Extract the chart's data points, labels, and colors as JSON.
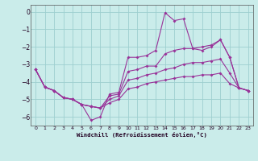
{
  "xlabel": "Windchill (Refroidissement éolien,°C)",
  "background_color": "#caecea",
  "grid_color": "#9dcfcf",
  "line_color": "#993399",
  "xlim": [
    -0.5,
    23.5
  ],
  "ylim": [
    -6.5,
    0.4
  ],
  "yticks": [
    0,
    -1,
    -2,
    -3,
    -4,
    -5,
    -6
  ],
  "xticks": [
    0,
    1,
    2,
    3,
    4,
    5,
    6,
    7,
    8,
    9,
    10,
    11,
    12,
    13,
    14,
    15,
    16,
    17,
    18,
    19,
    20,
    21,
    22,
    23
  ],
  "line1_x": [
    0,
    1,
    2,
    3,
    4,
    5,
    6,
    7,
    8,
    9,
    10,
    11,
    12,
    13,
    14,
    15,
    16,
    17,
    18,
    19,
    20,
    21,
    22,
    23
  ],
  "line1_y": [
    -3.3,
    -4.3,
    -4.5,
    -4.9,
    -5.0,
    -5.3,
    -6.2,
    -6.0,
    -4.7,
    -4.6,
    -2.6,
    -2.6,
    -2.5,
    -2.2,
    -0.05,
    -0.5,
    -0.4,
    -2.1,
    -2.2,
    -2.0,
    -1.6,
    -2.6,
    -4.35,
    -4.5
  ],
  "line2_x": [
    0,
    1,
    2,
    3,
    4,
    5,
    6,
    7,
    8,
    9,
    10,
    11,
    12,
    13,
    14,
    15,
    16,
    17,
    18,
    19,
    20,
    21,
    22,
    23
  ],
  "line2_y": [
    -3.3,
    -4.3,
    -4.5,
    -4.9,
    -5.0,
    -5.3,
    -5.4,
    -5.5,
    -4.8,
    -4.7,
    -3.4,
    -3.3,
    -3.1,
    -3.1,
    -2.4,
    -2.2,
    -2.1,
    -2.1,
    -2.0,
    -1.9,
    -1.6,
    -2.6,
    -4.35,
    -4.5
  ],
  "line3_x": [
    0,
    1,
    2,
    3,
    4,
    5,
    6,
    7,
    8,
    9,
    10,
    11,
    12,
    13,
    14,
    15,
    16,
    17,
    18,
    19,
    20,
    21,
    22,
    23
  ],
  "line3_y": [
    -3.3,
    -4.3,
    -4.5,
    -4.9,
    -5.0,
    -5.3,
    -5.4,
    -5.5,
    -5.0,
    -4.8,
    -3.9,
    -3.8,
    -3.6,
    -3.5,
    -3.3,
    -3.2,
    -3.0,
    -2.9,
    -2.9,
    -2.8,
    -2.7,
    -3.5,
    -4.35,
    -4.5
  ],
  "line4_x": [
    0,
    1,
    2,
    3,
    4,
    5,
    6,
    7,
    8,
    9,
    10,
    11,
    12,
    13,
    14,
    15,
    16,
    17,
    18,
    19,
    20,
    21,
    22,
    23
  ],
  "line4_y": [
    -3.3,
    -4.3,
    -4.5,
    -4.9,
    -5.0,
    -5.3,
    -5.4,
    -5.5,
    -5.2,
    -5.0,
    -4.4,
    -4.3,
    -4.1,
    -4.0,
    -3.9,
    -3.8,
    -3.7,
    -3.7,
    -3.6,
    -3.6,
    -3.5,
    -4.1,
    -4.35,
    -4.5
  ]
}
